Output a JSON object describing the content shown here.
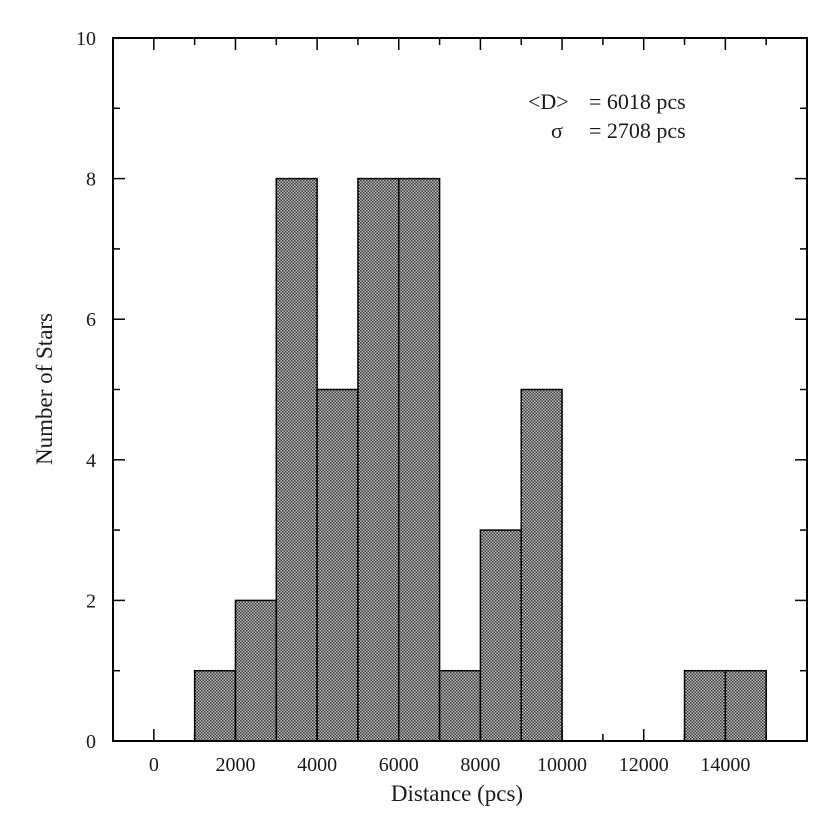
{
  "chart_data": {
    "type": "bar",
    "bin_width": 1000,
    "bins": [
      {
        "x0": 1000,
        "x1": 2000,
        "value": 1
      },
      {
        "x0": 2000,
        "x1": 3000,
        "value": 2
      },
      {
        "x0": 3000,
        "x1": 4000,
        "value": 8
      },
      {
        "x0": 4000,
        "x1": 5000,
        "value": 5
      },
      {
        "x0": 5000,
        "x1": 6000,
        "value": 8
      },
      {
        "x0": 6000,
        "x1": 7000,
        "value": 8
      },
      {
        "x0": 7000,
        "x1": 8000,
        "value": 1
      },
      {
        "x0": 8000,
        "x1": 9000,
        "value": 3
      },
      {
        "x0": 9000,
        "x1": 10000,
        "value": 5
      },
      {
        "x0": 10000,
        "x1": 11000,
        "value": 0
      },
      {
        "x0": 11000,
        "x1": 12000,
        "value": 0
      },
      {
        "x0": 12000,
        "x1": 13000,
        "value": 0
      },
      {
        "x0": 13000,
        "x1": 14000,
        "value": 1
      },
      {
        "x0": 14000,
        "x1": 15000,
        "value": 1
      }
    ],
    "xlabel": "Distance (pcs)",
    "ylabel": "Number of Stars",
    "xlim": [
      -1000,
      16000
    ],
    "ylim": [
      0,
      10
    ],
    "xticks": [
      "0",
      "2000",
      "4000",
      "6000",
      "8000",
      "10000",
      "12000",
      "14000"
    ],
    "yticks": [
      "0",
      "2",
      "4",
      "6",
      "8",
      "10"
    ],
    "grid": false,
    "annotations": {
      "mean_label": "<D>",
      "mean_value": "= 6018 pcs",
      "sigma_label": "σ",
      "sigma_value": "= 2708 pcs"
    },
    "bar_fill": "#8c8c8c",
    "bar_stroke": "#000000"
  }
}
